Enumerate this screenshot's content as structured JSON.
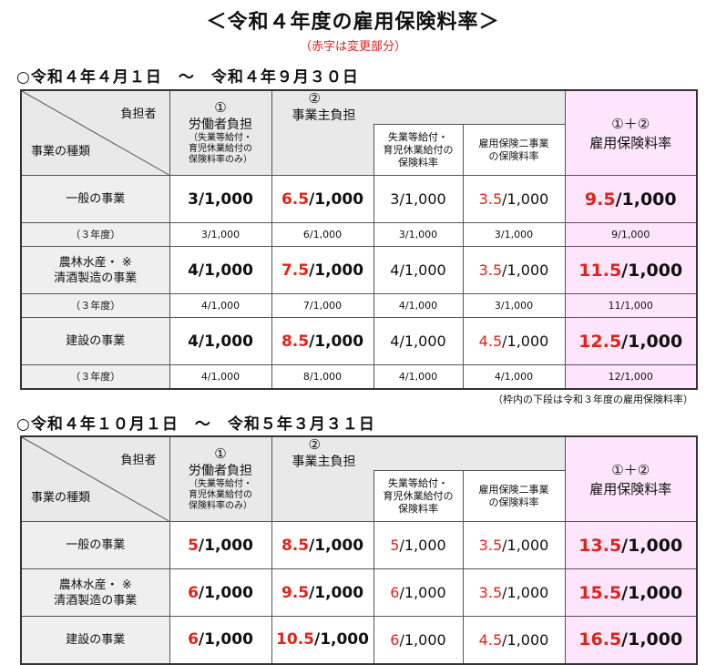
{
  "title": "＜令和４年度の雇用保険料率＞",
  "subtitle": "（赤字は変更部分）",
  "header": {
    "payer": "負担者",
    "business_type": "事業の種類",
    "worker_circle": "①",
    "worker_label": "労働者負担",
    "worker_sub1": "（失業等給付・",
    "worker_sub2": "育児休業給付の",
    "worker_sub3": "保険料率のみ）",
    "employer_circle": "②",
    "employer_label": "事業主負担",
    "unemp1": "失業等給付・",
    "unemp2": "育児休業給付の",
    "unemp3": "保険料率",
    "twoproj1": "雇用保険二事業",
    "twoproj2": "の保険料率",
    "sum_circle": "①＋②",
    "sum_label": "雇用保険料率"
  },
  "period1": {
    "label": "○令和４年４月１日　～　令和４年９月３０日",
    "rows": [
      {
        "cat1": "一般の事業",
        "cat2": "",
        "worker_n": "3",
        "worker_d": "/1,000",
        "employer_n": "6.5",
        "employer_d": "/1,000",
        "unemp_n": "3",
        "unemp_d": "/1,000",
        "two_n": "3.5",
        "two_d": "/1,000",
        "sum_n": "9.5",
        "sum_d": "/1,000",
        "prev_label": "（３年度）",
        "prev": [
          "3/1,000",
          "6/1,000",
          "3/1,000",
          "3/1,000",
          "9/1,000"
        ]
      },
      {
        "cat1": "農林水産・ ※",
        "cat2": "清酒製造の事業",
        "worker_n": "4",
        "worker_d": "/1,000",
        "employer_n": "7.5",
        "employer_d": "/1,000",
        "unemp_n": "4",
        "unemp_d": "/1,000",
        "two_n": "3.5",
        "two_d": "/1,000",
        "sum_n": "11.5",
        "sum_d": "/1,000",
        "prev_label": "（３年度）",
        "prev": [
          "4/1,000",
          "7/1,000",
          "4/1,000",
          "3/1,000",
          "11/1,000"
        ]
      },
      {
        "cat1": "建設の事業",
        "cat2": "",
        "worker_n": "4",
        "worker_d": "/1,000",
        "employer_n": "8.5",
        "employer_d": "/1,000",
        "unemp_n": "4",
        "unemp_d": "/1,000",
        "two_n": "4.5",
        "two_d": "/1,000",
        "sum_n": "12.5",
        "sum_d": "/1,000",
        "prev_label": "（３年度）",
        "prev": [
          "4/1,000",
          "8/1,000",
          "4/1,000",
          "4/1,000",
          "12/1,000"
        ]
      }
    ],
    "note": "（枠内の下段は令和３年度の雇用保険料率）"
  },
  "period2": {
    "label": "○令和４年１０月１日　～　令和５年３月３１日",
    "rows": [
      {
        "cat1": "一般の事業",
        "cat2": "",
        "worker_n": "5",
        "worker_d": "/1,000",
        "employer_n": "8.5",
        "employer_d": "/1,000",
        "unemp_n": "5",
        "unemp_d": "/1,000",
        "two_n": "3.5",
        "two_d": "/1,000",
        "sum_n": "13.5",
        "sum_d": "/1,000"
      },
      {
        "cat1": "農林水産・ ※",
        "cat2": "清酒製造の事業",
        "worker_n": "6",
        "worker_d": "/1,000",
        "employer_n": "9.5",
        "employer_d": "/1,000",
        "unemp_n": "6",
        "unemp_d": "/1,000",
        "two_n": "3.5",
        "two_d": "/1,000",
        "sum_n": "15.5",
        "sum_d": "/1,000"
      },
      {
        "cat1": "建設の事業",
        "cat2": "",
        "worker_n": "6",
        "worker_d": "/1,000",
        "employer_n": "10.5",
        "employer_d": "/1,000",
        "unemp_n": "6",
        "unemp_d": "/1,000",
        "two_n": "4.5",
        "two_d": "/1,000",
        "sum_n": "16.5",
        "sum_d": "/1,000"
      }
    ]
  },
  "colors": {
    "changed": "#e0231a",
    "sum_bg": "#fde6fb",
    "header_bg": "#e9e9e9"
  }
}
